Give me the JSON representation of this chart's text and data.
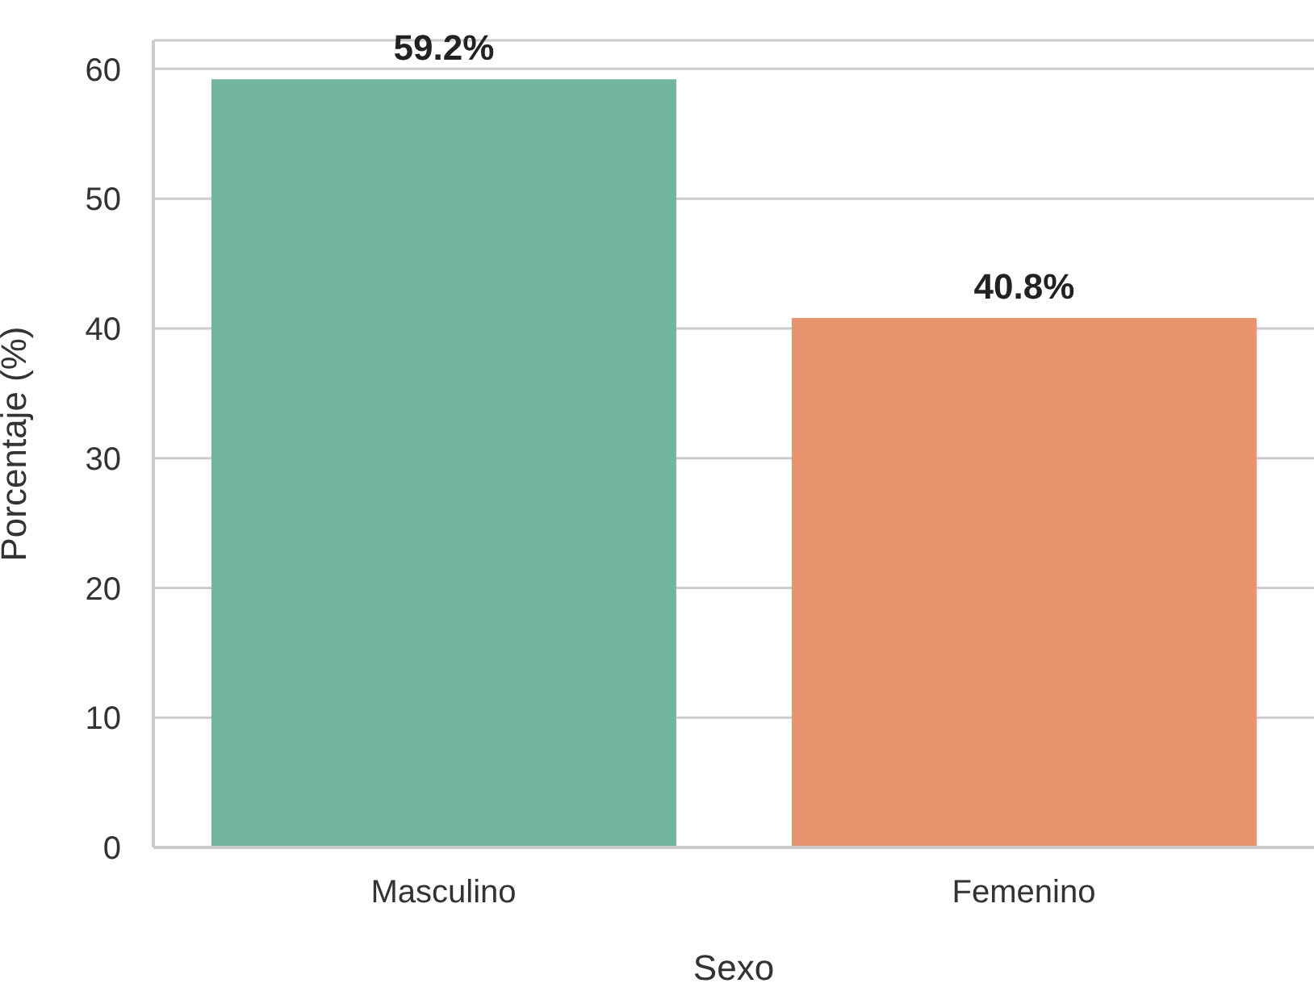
{
  "chart_data": {
    "type": "bar",
    "xlabel": "Sexo",
    "ylabel": "Porcentaje (%)",
    "categories": [
      "Masculino",
      "Femenino"
    ],
    "values": [
      59.2,
      40.8
    ],
    "colors": [
      "#72b5a0",
      "#e8956f"
    ],
    "value_labels": [
      "59.2%",
      "40.8%"
    ],
    "ylim": [
      0,
      62.2
    ],
    "yticks": [
      0,
      10,
      20,
      30,
      40,
      50,
      60
    ],
    "grid": "y"
  }
}
